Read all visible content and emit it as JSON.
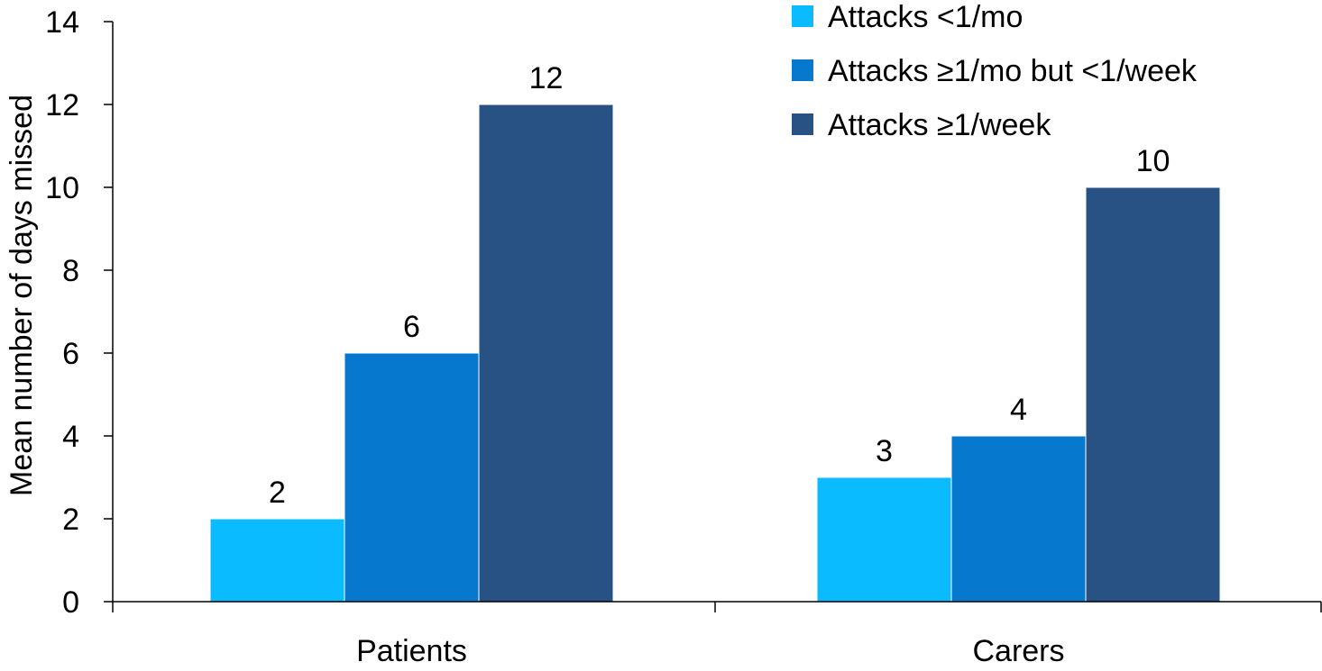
{
  "chart_data": {
    "type": "bar",
    "title": "",
    "xlabel": "",
    "ylabel": "Mean number of days missed",
    "ylim": [
      0,
      14
    ],
    "yticks": [
      0,
      2,
      4,
      6,
      8,
      10,
      12,
      14
    ],
    "categories": [
      "Patients",
      "Carers"
    ],
    "series": [
      {
        "name": "Attacks <1/mo",
        "values": [
          2,
          3
        ],
        "color": "#0abcff"
      },
      {
        "name": "Attacks ≥1/mo but <1/week",
        "values": [
          6,
          4
        ],
        "color": "#0679ce"
      },
      {
        "name": "Attacks ≥1/week",
        "values": [
          12,
          10
        ],
        "color": "#275283"
      }
    ],
    "data_labels": [
      [
        "2",
        "3"
      ],
      [
        "6",
        "4"
      ],
      [
        "12",
        "10"
      ]
    ],
    "grid": false,
    "legend_position": "top-right"
  }
}
